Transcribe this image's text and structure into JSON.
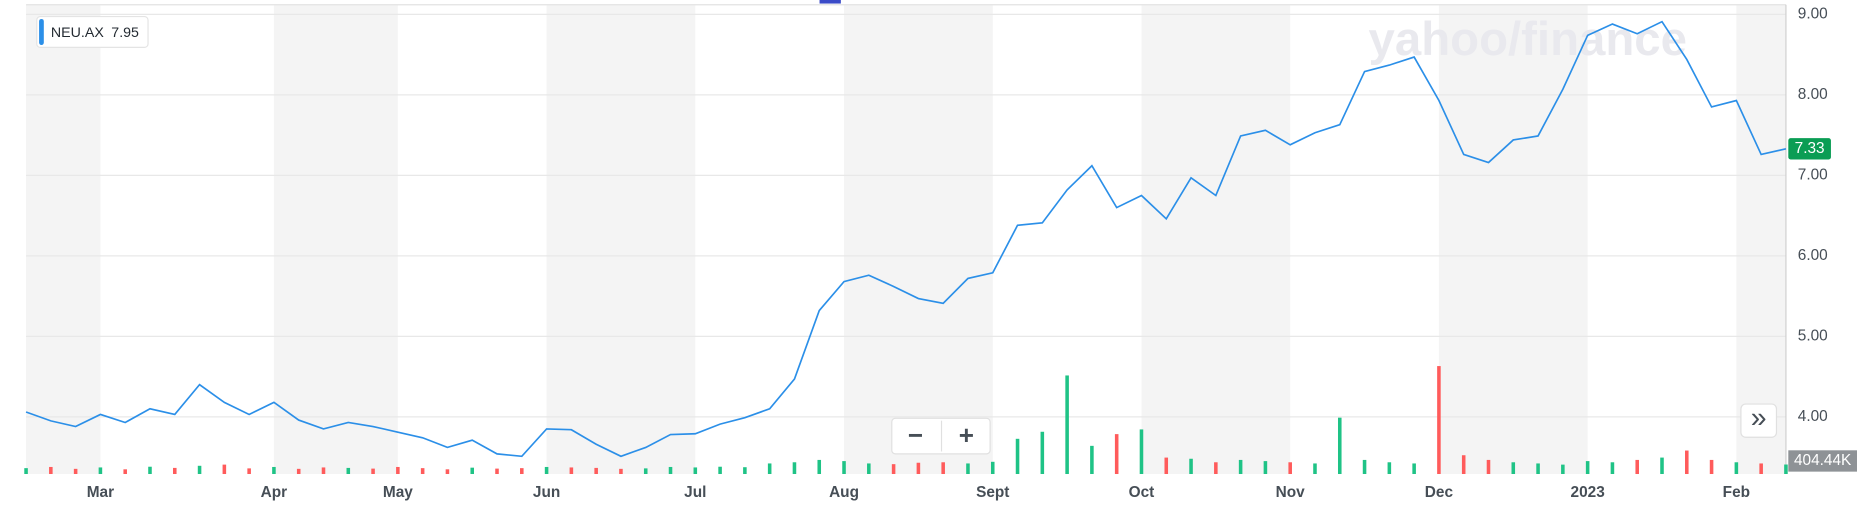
{
  "chart_data": {
    "type": "line",
    "watermark": "yahoo/finance",
    "legend_value": 7.95,
    "price_badge": {
      "value": 7.33,
      "label": "7.33"
    },
    "volume_badge": {
      "value": 404440,
      "label": "404.44K"
    },
    "zoom_out": "−",
    "zoom_in": "+",
    "expand": "»",
    "categories": [
      null,
      null,
      null,
      "Mar",
      null,
      null,
      null,
      null,
      null,
      null,
      "Apr",
      null,
      null,
      null,
      null,
      "May",
      null,
      null,
      null,
      null,
      null,
      "Jun",
      null,
      null,
      null,
      null,
      null,
      "Jul",
      null,
      null,
      null,
      null,
      null,
      "Aug",
      null,
      null,
      null,
      null,
      null,
      "Sept",
      null,
      null,
      null,
      null,
      null,
      "Oct",
      null,
      null,
      null,
      null,
      null,
      "Nov",
      null,
      null,
      null,
      null,
      null,
      "Dec",
      null,
      null,
      null,
      null,
      null,
      "2023",
      null,
      null,
      null,
      null,
      null,
      "Feb",
      null,
      null
    ],
    "series": [
      {
        "name": "NEU.AX",
        "color": "#2b8fe8",
        "values": [
          4.06,
          3.95,
          3.88,
          4.03,
          3.93,
          4.1,
          4.03,
          4.4,
          4.18,
          4.03,
          4.18,
          3.96,
          3.85,
          3.93,
          3.88,
          3.81,
          3.74,
          3.62,
          3.71,
          3.54,
          3.51,
          3.85,
          3.84,
          3.66,
          3.51,
          3.62,
          3.78,
          3.79,
          3.91,
          3.99,
          4.1,
          4.47,
          5.32,
          5.68,
          5.76,
          5.62,
          5.47,
          5.41,
          5.72,
          5.79,
          6.38,
          6.41,
          6.82,
          7.12,
          6.6,
          6.75,
          6.46,
          6.97,
          6.75,
          7.49,
          7.56,
          7.38,
          7.53,
          7.63,
          8.29,
          8.37,
          8.47,
          7.93,
          7.26,
          7.16,
          7.44,
          7.49,
          8.07,
          8.74,
          8.88,
          8.76,
          8.91,
          8.44,
          7.85,
          7.93,
          7.26,
          7.33
        ]
      },
      {
        "name": "Volume",
        "axis": "y2",
        "up_color": "#1fc386",
        "down_color": "#ff5b5b",
        "values": [
          250000,
          300000,
          220000,
          280000,
          200000,
          310000,
          260000,
          350000,
          400000,
          240000,
          300000,
          220000,
          280000,
          260000,
          230000,
          300000,
          250000,
          200000,
          270000,
          230000,
          250000,
          300000,
          280000,
          260000,
          220000,
          240000,
          300000,
          280000,
          310000,
          290000,
          450000,
          500000,
          600000,
          550000,
          450000,
          420000,
          480000,
          500000,
          450000,
          520000,
          1500000,
          1800000,
          4200000,
          1200000,
          1700000,
          1900000,
          700000,
          650000,
          500000,
          600000,
          550000,
          500000,
          450000,
          2400000,
          600000,
          500000,
          450000,
          4600000,
          800000,
          600000,
          500000,
          450000,
          400000,
          550000,
          500000,
          600000,
          700000,
          1000000,
          600000,
          500000,
          450000,
          404440
        ]
      }
    ],
    "ylim": [
      3.29,
      9.12
    ],
    "yticks": [
      {
        "value": 4,
        "label": "4.00"
      },
      {
        "value": 5,
        "label": "5.00"
      },
      {
        "value": 6,
        "label": "6.00"
      },
      {
        "value": 7,
        "label": "7.00"
      },
      {
        "value": 8,
        "label": "8.00"
      },
      {
        "value": 9,
        "label": "9.00"
      }
    ],
    "y2lim": [
      0,
      20000000
    ],
    "grid": true,
    "month_bands": true
  }
}
